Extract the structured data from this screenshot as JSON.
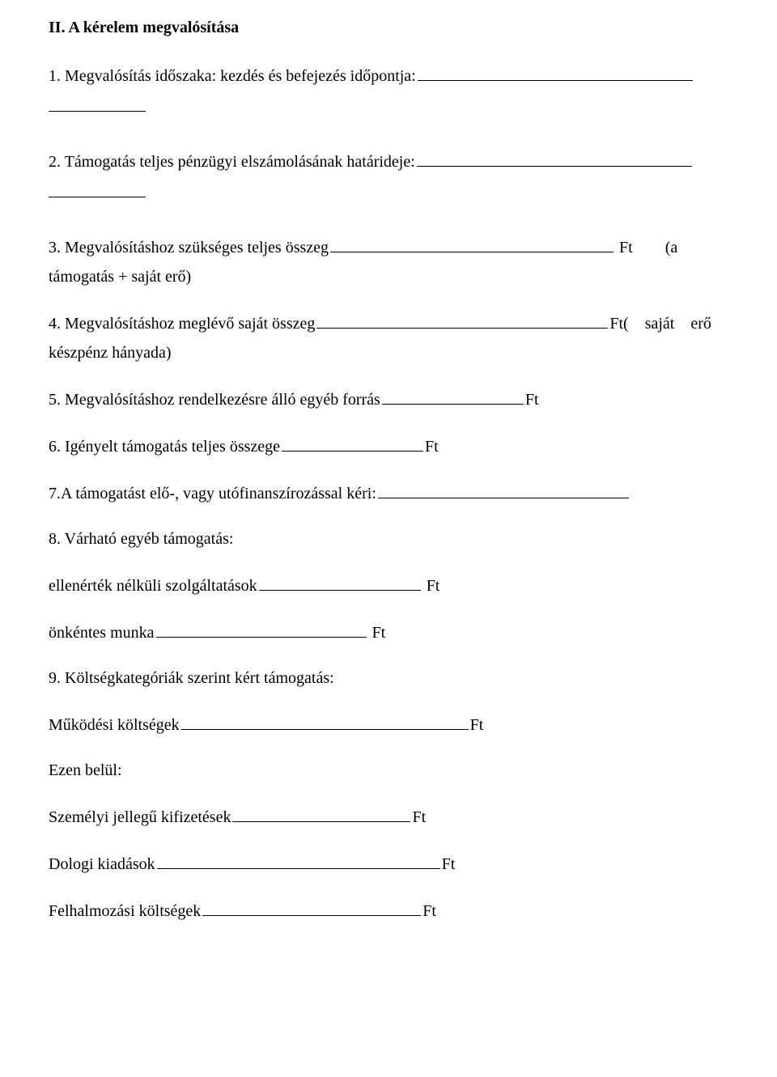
{
  "heading": "II. A kérelem megvalósítása",
  "item1_text": "1. Megvalósítás időszaka: kezdés és befejezés időpontja:",
  "item2_text": "2. Támogatás teljes pénzügyi elszámolásának határideje:",
  "item3_label": "3. Megvalósításhoz szükséges teljes összeg ",
  "item3_trail": " Ft        (a",
  "item3_sub": "támogatás + saját erő)",
  "item4_label": "4. Megvalósításhoz meglévő saját összeg ",
  "item4_trail": "Ft(    saját    erő",
  "item4_sub": "készpénz hányada)",
  "item5_label": "5. Megvalósításhoz rendelkezésre álló egyéb forrás ",
  "ft": "Ft",
  "item6_label": "6. Igényelt támogatás teljes összege ",
  "item7_label": "7.A támogatást elő-, vagy utófinanszírozással kéri:",
  "item8_text": "8. Várható egyéb támogatás:",
  "item8_a_label": "ellenérték nélküli szolgáltatások ",
  "item8_a_trail": " Ft",
  "item8_b_label": "önkéntes munka ",
  "item8_b_trail": " Ft",
  "item9_text": "9. Költségkategóriák szerint kért támogatás:",
  "item9_a_label": "Működési költségek ",
  "ezen_belul": "Ezen belül:",
  "item9_b_label": "Személyi jellegű kifizetések ",
  "item9_c_label": "Dologi kiadások ",
  "item9_d_label": "Felhalmozási költségek ",
  "blank_widths": {
    "item1": 340,
    "item2": 340,
    "item3": 350,
    "item4": 360,
    "item5": 175,
    "item6": 175,
    "item7": 310,
    "item8a": 200,
    "item8b": 260,
    "item9a": 355,
    "item9b": 220,
    "item9c": 350,
    "item9d": 270
  }
}
